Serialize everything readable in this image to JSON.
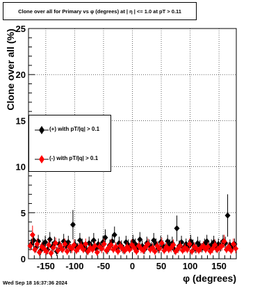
{
  "title": "Clone  over all for Primary vs φ (degrees) at |  η | <= 1.0 at pT > 0.11",
  "timestamp": "Wed Sep 18 16:37:36 2024",
  "chart_data": {
    "type": "scatter",
    "xlabel": "φ (degrees)",
    "ylabel": "Clone  over all (%)",
    "xlim": [
      -180,
      180
    ],
    "ylim": [
      0,
      25
    ],
    "grid": true,
    "legend_position": "middle-left",
    "x_ticks": [
      -150,
      -100,
      -50,
      0,
      50,
      100,
      150
    ],
    "y_ticks": [
      0,
      5,
      10,
      15,
      20,
      25
    ],
    "series": [
      {
        "name": "(+) with pT/|q| > 0.1",
        "color": "#000000",
        "marker": "diamond",
        "x": [
          -175,
          -171,
          -167,
          -163,
          -159,
          -155,
          -151,
          -147,
          -143,
          -139,
          -135,
          -131,
          -127,
          -123,
          -119,
          -115,
          -111,
          -107,
          -103,
          -99,
          -95,
          -91,
          -87,
          -83,
          -79,
          -75,
          -71,
          -67,
          -63,
          -59,
          -55,
          -51,
          -47,
          -43,
          -39,
          -35,
          -31,
          -27,
          -23,
          -19,
          -15,
          -11,
          -7,
          -3,
          1,
          5,
          9,
          13,
          17,
          21,
          25,
          29,
          33,
          37,
          41,
          45,
          49,
          53,
          57,
          61,
          65,
          69,
          73,
          77,
          81,
          85,
          89,
          93,
          97,
          101,
          105,
          109,
          113,
          117,
          121,
          125,
          129,
          133,
          137,
          141,
          145,
          149,
          153,
          157,
          161,
          165,
          169,
          173,
          177
        ],
        "y": [
          1.6,
          2.0,
          1.2,
          1.9,
          0.9,
          1.5,
          1.8,
          1.0,
          2.1,
          1.3,
          1.7,
          0.8,
          1.6,
          1.2,
          1.9,
          1.4,
          1.8,
          1.1,
          3.7,
          1.5,
          1.2,
          2.0,
          1.6,
          1.3,
          0.9,
          1.7,
          1.4,
          2.0,
          1.1,
          1.6,
          1.3,
          1.8,
          2.3,
          1.0,
          1.5,
          1.9,
          2.6,
          1.2,
          1.7,
          1.4,
          1.0,
          1.8,
          1.5,
          1.3,
          1.9,
          1.6,
          1.2,
          2.1,
          1.4,
          1.0,
          1.7,
          1.5,
          1.3,
          2.0,
          1.6,
          1.1,
          1.8,
          1.4,
          1.2,
          1.9,
          1.5,
          1.7,
          1.0,
          3.3,
          1.4,
          1.8,
          1.2,
          1.6,
          1.3,
          1.9,
          1.5,
          1.1,
          1.7,
          1.4,
          1.2,
          1.6,
          1.9,
          1.3,
          1.5,
          1.8,
          1.2,
          1.6,
          1.4,
          1.9,
          1.7,
          4.7,
          1.5,
          1.2,
          1.6
        ],
        "err": [
          0.6,
          0.8,
          0.5,
          0.7,
          0.5,
          0.6,
          0.7,
          0.5,
          0.8,
          0.6,
          0.7,
          0.5,
          0.6,
          0.5,
          0.8,
          0.6,
          0.7,
          0.5,
          1.6,
          0.6,
          0.5,
          0.8,
          0.6,
          0.5,
          0.5,
          0.7,
          0.6,
          0.8,
          0.5,
          0.6,
          0.5,
          0.7,
          0.9,
          0.5,
          0.6,
          0.7,
          0.9,
          0.5,
          0.7,
          0.6,
          0.5,
          0.7,
          0.6,
          0.5,
          0.7,
          0.6,
          0.5,
          0.8,
          0.6,
          0.5,
          0.7,
          0.6,
          0.5,
          0.8,
          0.6,
          0.5,
          0.7,
          0.6,
          0.5,
          0.7,
          0.6,
          0.7,
          0.5,
          1.4,
          0.6,
          0.7,
          0.5,
          0.6,
          0.5,
          0.7,
          0.6,
          0.5,
          0.7,
          0.6,
          0.5,
          0.6,
          0.7,
          0.5,
          0.6,
          0.7,
          0.5,
          0.6,
          0.6,
          0.7,
          0.7,
          2.3,
          0.6,
          0.5,
          0.6
        ]
      },
      {
        "name": "(-) with pT/|q| > 0.1",
        "color": "#ff0000",
        "marker": "diamond",
        "x": [
          -177,
          -173,
          -169,
          -165,
          -161,
          -157,
          -153,
          -149,
          -145,
          -141,
          -137,
          -133,
          -129,
          -125,
          -121,
          -117,
          -113,
          -109,
          -105,
          -101,
          -97,
          -93,
          -89,
          -85,
          -81,
          -77,
          -73,
          -69,
          -65,
          -61,
          -57,
          -53,
          -49,
          -45,
          -41,
          -37,
          -33,
          -29,
          -25,
          -21,
          -17,
          -13,
          -9,
          -5,
          -1,
          3,
          7,
          11,
          15,
          19,
          23,
          27,
          31,
          35,
          39,
          43,
          47,
          51,
          55,
          59,
          63,
          67,
          71,
          75,
          79,
          83,
          87,
          91,
          95,
          99,
          103,
          107,
          111,
          115,
          119,
          123,
          127,
          131,
          135,
          139,
          143,
          147,
          151,
          155,
          159,
          163,
          167,
          171,
          175,
          179
        ],
        "y": [
          1.4,
          2.6,
          1.0,
          1.6,
          0.7,
          1.3,
          1.1,
          0.8,
          1.5,
          0.6,
          1.2,
          1.7,
          0.9,
          1.4,
          1.0,
          1.6,
          0.8,
          1.3,
          1.1,
          1.5,
          0.9,
          1.2,
          1.4,
          1.0,
          1.6,
          0.8,
          1.2,
          1.0,
          1.4,
          0.7,
          1.3,
          1.1,
          1.6,
          0.9,
          1.2,
          1.5,
          1.0,
          1.3,
          0.8,
          1.4,
          1.1,
          0.9,
          1.3,
          1.0,
          1.5,
          1.2,
          0.8,
          1.4,
          1.1,
          0.9,
          1.3,
          1.6,
          1.0,
          1.2,
          0.8,
          1.4,
          1.1,
          1.7,
          0.9,
          1.3,
          1.0,
          1.2,
          1.5,
          0.8,
          1.1,
          1.4,
          0.9,
          1.2,
          1.0,
          1.6,
          0.8,
          1.3,
          1.1,
          0.9,
          1.2,
          1.4,
          1.0,
          1.3,
          0.8,
          1.1,
          1.5,
          1.0,
          1.2,
          1.4,
          1.9,
          1.0,
          1.3,
          0.9,
          1.6,
          1.1
        ],
        "err": [
          0.5,
          1.0,
          0.4,
          0.6,
          0.4,
          0.5,
          0.5,
          0.4,
          0.6,
          0.4,
          0.5,
          0.6,
          0.4,
          0.5,
          0.4,
          0.6,
          0.4,
          0.5,
          0.5,
          0.6,
          0.4,
          0.5,
          0.5,
          0.4,
          0.6,
          0.4,
          0.5,
          0.4,
          0.5,
          0.4,
          0.5,
          0.5,
          0.6,
          0.4,
          0.5,
          0.6,
          0.4,
          0.5,
          0.4,
          0.5,
          0.5,
          0.4,
          0.5,
          0.4,
          0.6,
          0.5,
          0.4,
          0.5,
          0.5,
          0.4,
          0.5,
          0.6,
          0.4,
          0.5,
          0.4,
          0.5,
          0.5,
          0.6,
          0.4,
          0.5,
          0.4,
          0.5,
          0.6,
          0.4,
          0.5,
          0.5,
          0.4,
          0.5,
          0.4,
          0.6,
          0.4,
          0.5,
          0.5,
          0.4,
          0.5,
          0.5,
          0.4,
          0.5,
          0.4,
          0.5,
          0.6,
          0.4,
          0.5,
          0.5,
          0.7,
          0.4,
          0.5,
          0.4,
          0.6,
          0.5
        ]
      }
    ]
  }
}
